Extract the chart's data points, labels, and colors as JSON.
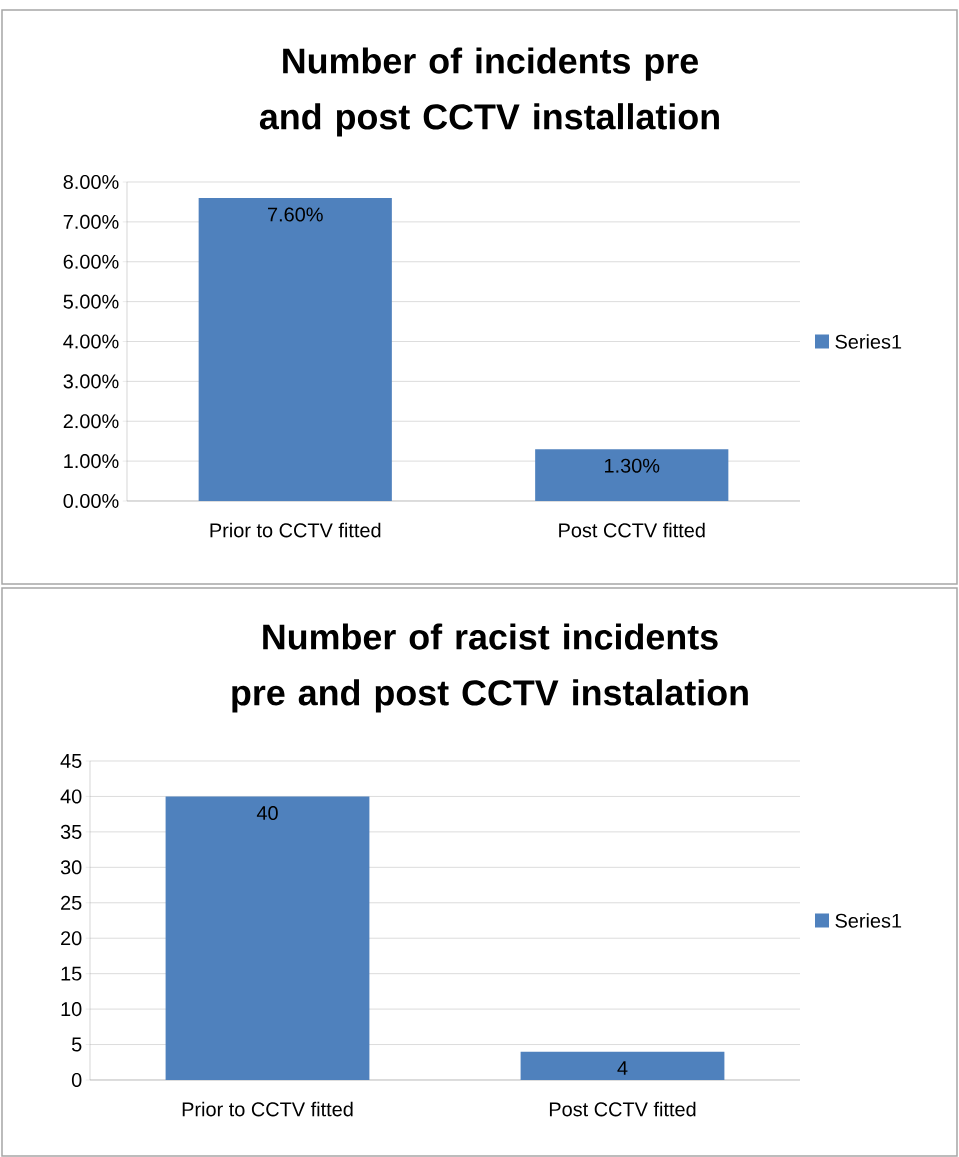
{
  "chart_data": [
    {
      "type": "bar",
      "title": "Number of incidents pre and post CCTV installation",
      "categories": [
        "Prior to CCTV fitted",
        "Post CCTV fitted"
      ],
      "series": [
        {
          "name": "Series1",
          "color": "#4f81bd",
          "values": [
            7.6,
            1.3
          ],
          "value_labels": [
            "7.60%",
            "1.30%"
          ]
        }
      ],
      "ylim": [
        0,
        8
      ],
      "yticks": [
        {
          "value": 0,
          "label": "0.00%"
        },
        {
          "value": 1,
          "label": "1.00%"
        },
        {
          "value": 2,
          "label": "2.00%"
        },
        {
          "value": 3,
          "label": "3.00%"
        },
        {
          "value": 4,
          "label": "4.00%"
        },
        {
          "value": 5,
          "label": "5.00%"
        },
        {
          "value": 6,
          "label": "6.00%"
        },
        {
          "value": 7,
          "label": "7.00%"
        },
        {
          "value": 8,
          "label": "8.00%"
        }
      ],
      "grid": "y",
      "legend": "right"
    },
    {
      "type": "bar",
      "title": "Number of racist incidents pre and post CCTV instalation",
      "categories": [
        "Prior to CCTV fitted",
        "Post CCTV fitted"
      ],
      "series": [
        {
          "name": "Series1",
          "color": "#4f81bd",
          "values": [
            40,
            4
          ]
        }
      ],
      "ylim": [
        0,
        45
      ],
      "yticks": [
        0,
        5,
        10,
        15,
        20,
        25,
        30,
        35,
        40,
        45
      ],
      "grid": "y",
      "legend": "right",
      "data_labels": true
    }
  ]
}
